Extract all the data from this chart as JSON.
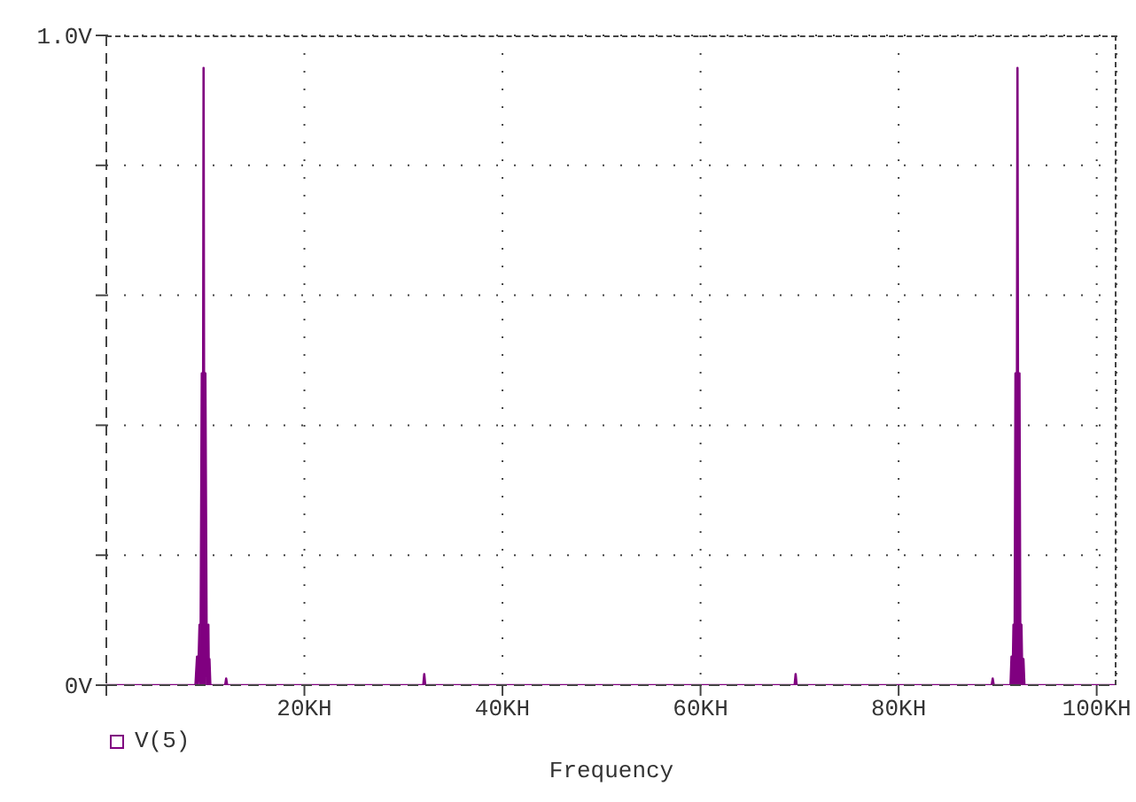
{
  "chart_data": {
    "type": "line",
    "xlabel": "Frequency",
    "xlim": [
      0,
      102
    ],
    "ylim": [
      0,
      1
    ],
    "xticks": [
      {
        "value": 0,
        "label": null
      },
      {
        "value": 20,
        "label": "20KH"
      },
      {
        "value": 40,
        "label": "40KH"
      },
      {
        "value": 60,
        "label": "60KH"
      },
      {
        "value": 80,
        "label": "80KH"
      },
      {
        "value": 100,
        "label": "100KH"
      }
    ],
    "yticks": [
      {
        "value": 0,
        "label": "0V"
      },
      {
        "value": 0.2,
        "label": null
      },
      {
        "value": 0.4,
        "label": null
      },
      {
        "value": 0.6,
        "label": null
      },
      {
        "value": 0.8,
        "label": null
      },
      {
        "value": 1,
        "label": "1.0V"
      }
    ],
    "grid": true,
    "legend": "bottom left",
    "x": [
      0,
      9,
      9.16,
      9.25,
      9.41,
      9.5,
      9.64,
      9.73,
      9.82,
      9.91,
      10,
      10.15,
      10.3,
      10.36,
      10.41,
      10.5,
      12,
      12.1,
      12.2,
      32,
      32.1,
      32.2,
      69.5,
      69.6,
      69.7,
      89.4,
      89.5,
      89.6,
      91.3,
      91.4,
      91.5,
      91.6,
      91.7,
      91.8,
      91.9,
      92,
      92.1,
      92.2,
      92.3,
      92.4,
      92.5,
      92.6,
      92.7,
      102
    ],
    "series": [
      {
        "name": "V(5)",
        "color": "#800080",
        "values": [
          0,
          0,
          0.044,
          0,
          0.093,
          0,
          0.48,
          0,
          0.95,
          0,
          0.48,
          0,
          0.093,
          0,
          0.04,
          0,
          0,
          0.01,
          0,
          0,
          0.017,
          0,
          0,
          0.017,
          0,
          0,
          0.01,
          0,
          0,
          0.044,
          0,
          0.093,
          0,
          0.48,
          0,
          0.95,
          0,
          0.48,
          0,
          0.093,
          0,
          0.04,
          0,
          0
        ]
      }
    ]
  }
}
